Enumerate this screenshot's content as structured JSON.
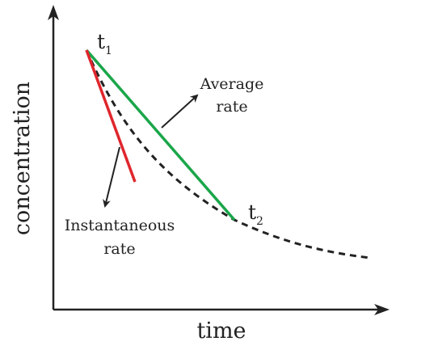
{
  "axes": {
    "x_label": "time",
    "y_label": "concentration"
  },
  "points": {
    "t1": {
      "letter": "t",
      "subscript": "1"
    },
    "t2": {
      "letter": "t",
      "subscript": "2"
    }
  },
  "annotations": {
    "average": {
      "line1": "Average",
      "line2": "rate"
    },
    "instantaneous": {
      "line1": "Instantaneous",
      "line2": "rate"
    }
  },
  "colors": {
    "average_line": "#1aa64a",
    "instantaneous_line": "#e0262d",
    "curve": "#222222",
    "axes": "#222222",
    "arrows": "#222222"
  }
}
